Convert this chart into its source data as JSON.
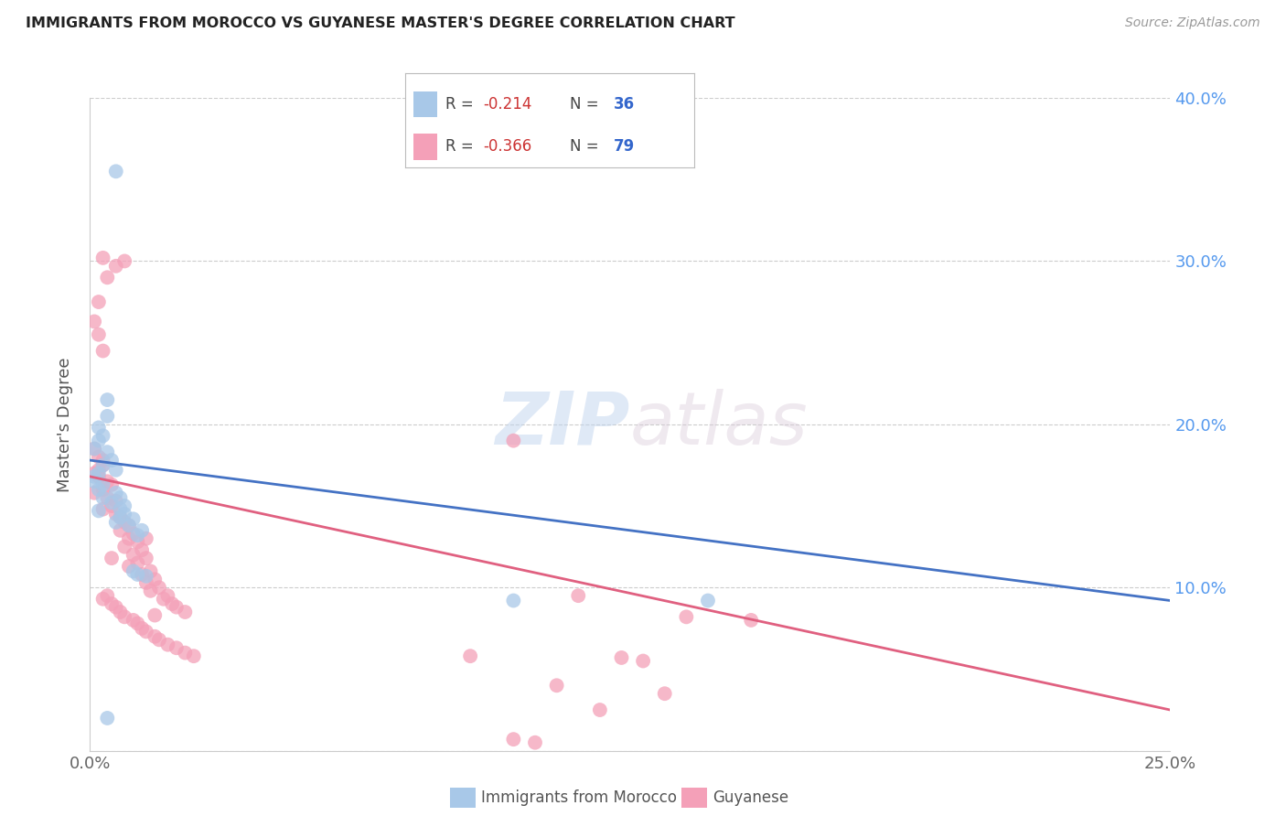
{
  "title": "IMMIGRANTS FROM MOROCCO VS GUYANESE MASTER'S DEGREE CORRELATION CHART",
  "source": "Source: ZipAtlas.com",
  "ylabel": "Master's Degree",
  "xlim": [
    0.0,
    0.25
  ],
  "ylim": [
    0.0,
    0.4
  ],
  "watermark": "ZIPatlas",
  "blue_color": "#a8c8e8",
  "pink_color": "#f4a0b8",
  "line_blue": "#4472c4",
  "line_pink": "#e06080",
  "blue_scatter": [
    [
      0.006,
      0.355
    ],
    [
      0.004,
      0.215
    ],
    [
      0.004,
      0.205
    ],
    [
      0.002,
      0.198
    ],
    [
      0.003,
      0.193
    ],
    [
      0.002,
      0.19
    ],
    [
      0.001,
      0.185
    ],
    [
      0.004,
      0.183
    ],
    [
      0.005,
      0.178
    ],
    [
      0.003,
      0.175
    ],
    [
      0.006,
      0.172
    ],
    [
      0.002,
      0.17
    ],
    [
      0.001,
      0.168
    ],
    [
      0.001,
      0.165
    ],
    [
      0.003,
      0.163
    ],
    [
      0.002,
      0.16
    ],
    [
      0.006,
      0.158
    ],
    [
      0.007,
      0.155
    ],
    [
      0.003,
      0.155
    ],
    [
      0.005,
      0.152
    ],
    [
      0.008,
      0.15
    ],
    [
      0.007,
      0.148
    ],
    [
      0.002,
      0.147
    ],
    [
      0.008,
      0.145
    ],
    [
      0.007,
      0.143
    ],
    [
      0.01,
      0.142
    ],
    [
      0.006,
      0.14
    ],
    [
      0.009,
      0.138
    ],
    [
      0.012,
      0.135
    ],
    [
      0.011,
      0.132
    ],
    [
      0.01,
      0.11
    ],
    [
      0.011,
      0.108
    ],
    [
      0.013,
      0.107
    ],
    [
      0.098,
      0.092
    ],
    [
      0.143,
      0.092
    ],
    [
      0.004,
      0.02
    ]
  ],
  "pink_scatter": [
    [
      0.003,
      0.302
    ],
    [
      0.006,
      0.297
    ],
    [
      0.004,
      0.29
    ],
    [
      0.002,
      0.275
    ],
    [
      0.001,
      0.263
    ],
    [
      0.002,
      0.255
    ],
    [
      0.008,
      0.3
    ],
    [
      0.003,
      0.245
    ],
    [
      0.001,
      0.185
    ],
    [
      0.002,
      0.18
    ],
    [
      0.003,
      0.178
    ],
    [
      0.003,
      0.175
    ],
    [
      0.002,
      0.172
    ],
    [
      0.001,
      0.17
    ],
    [
      0.002,
      0.168
    ],
    [
      0.004,
      0.165
    ],
    [
      0.005,
      0.163
    ],
    [
      0.003,
      0.16
    ],
    [
      0.001,
      0.158
    ],
    [
      0.004,
      0.155
    ],
    [
      0.006,
      0.153
    ],
    [
      0.005,
      0.15
    ],
    [
      0.003,
      0.148
    ],
    [
      0.006,
      0.145
    ],
    [
      0.007,
      0.143
    ],
    [
      0.008,
      0.14
    ],
    [
      0.009,
      0.138
    ],
    [
      0.007,
      0.135
    ],
    [
      0.01,
      0.133
    ],
    [
      0.009,
      0.13
    ],
    [
      0.011,
      0.128
    ],
    [
      0.008,
      0.125
    ],
    [
      0.012,
      0.123
    ],
    [
      0.01,
      0.12
    ],
    [
      0.013,
      0.118
    ],
    [
      0.011,
      0.115
    ],
    [
      0.005,
      0.118
    ],
    [
      0.009,
      0.113
    ],
    [
      0.014,
      0.11
    ],
    [
      0.012,
      0.108
    ],
    [
      0.015,
      0.105
    ],
    [
      0.013,
      0.103
    ],
    [
      0.016,
      0.1
    ],
    [
      0.014,
      0.098
    ],
    [
      0.018,
      0.095
    ],
    [
      0.017,
      0.093
    ],
    [
      0.019,
      0.09
    ],
    [
      0.02,
      0.088
    ],
    [
      0.022,
      0.085
    ],
    [
      0.015,
      0.083
    ],
    [
      0.004,
      0.095
    ],
    [
      0.003,
      0.093
    ],
    [
      0.005,
      0.09
    ],
    [
      0.006,
      0.088
    ],
    [
      0.007,
      0.085
    ],
    [
      0.008,
      0.082
    ],
    [
      0.01,
      0.08
    ],
    [
      0.011,
      0.078
    ],
    [
      0.012,
      0.075
    ],
    [
      0.013,
      0.073
    ],
    [
      0.015,
      0.07
    ],
    [
      0.016,
      0.068
    ],
    [
      0.018,
      0.065
    ],
    [
      0.02,
      0.063
    ],
    [
      0.022,
      0.06
    ],
    [
      0.024,
      0.058
    ],
    [
      0.013,
      0.13
    ],
    [
      0.098,
      0.19
    ],
    [
      0.113,
      0.095
    ],
    [
      0.138,
      0.082
    ],
    [
      0.153,
      0.08
    ],
    [
      0.088,
      0.058
    ],
    [
      0.123,
      0.057
    ],
    [
      0.128,
      0.055
    ],
    [
      0.108,
      0.04
    ],
    [
      0.133,
      0.035
    ],
    [
      0.118,
      0.025
    ],
    [
      0.098,
      0.007
    ],
    [
      0.103,
      0.005
    ]
  ],
  "blue_line_x": [
    0.0,
    0.25
  ],
  "blue_line_y": [
    0.178,
    0.092
  ],
  "pink_line_x": [
    0.0,
    0.25
  ],
  "pink_line_y": [
    0.168,
    0.025
  ]
}
